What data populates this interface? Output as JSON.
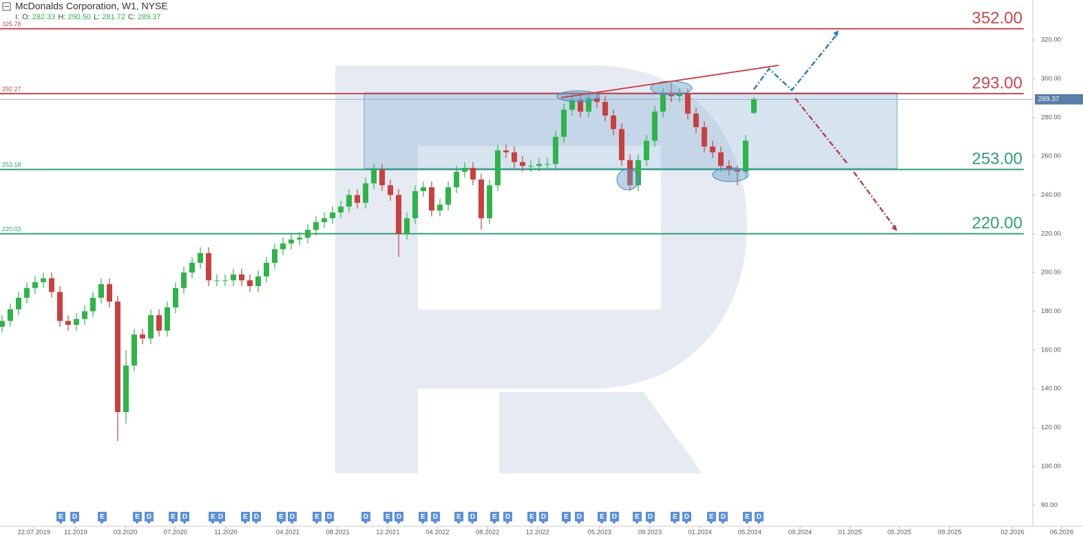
{
  "chart_data": {
    "type": "candlestick",
    "title": "McDonalds Corporation,  W1,  NYSE",
    "ohlc_prefix": "I:",
    "ohlc_names": [
      "O:",
      "H:",
      "L:",
      "C:"
    ],
    "last_labels": [
      "282.33",
      "290.50",
      "281.72",
      "289.37"
    ],
    "up_color": "#2fb34b",
    "down_color": "#c8403f",
    "open": [
      172,
      175,
      181,
      187,
      192,
      195,
      197,
      190,
      175,
      173,
      176,
      180,
      187,
      194,
      185,
      128,
      152,
      168,
      166,
      178,
      170,
      182,
      192,
      200,
      205,
      210,
      196,
      196,
      196,
      199,
      196,
      193,
      198,
      205,
      212,
      215,
      217,
      218,
      222,
      226,
      228,
      231,
      234,
      240,
      236,
      246,
      253,
      245,
      240,
      220,
      228,
      242,
      244,
      232,
      235,
      244,
      252,
      254,
      248,
      228,
      245,
      263,
      262,
      257,
      255,
      255,
      256,
      256,
      270,
      284,
      289,
      283,
      290,
      288,
      281,
      274,
      258,
      245,
      258,
      268,
      283,
      292,
      291,
      292,
      282,
      275,
      265,
      262,
      255,
      253,
      252,
      282.33
    ],
    "high": [
      178,
      184,
      190,
      195,
      198,
      200,
      200,
      193,
      178,
      179,
      183,
      190,
      197,
      197,
      188,
      160,
      171,
      171,
      181,
      181,
      185,
      195,
      203,
      208,
      213,
      213,
      199,
      199,
      202,
      202,
      199,
      201,
      208,
      215,
      218,
      220,
      221,
      225,
      229,
      231,
      234,
      237,
      243,
      243,
      249,
      256,
      256,
      248,
      243,
      231,
      245,
      247,
      247,
      238,
      247,
      255,
      257,
      257,
      251,
      248,
      266,
      266,
      265,
      260,
      258,
      259,
      259,
      273,
      287,
      292,
      292,
      293,
      293,
      291,
      284,
      277,
      261,
      261,
      271,
      286,
      295,
      298,
      295,
      295,
      285,
      278,
      268,
      265,
      258,
      255,
      271,
      290.5
    ],
    "low": [
      169,
      172,
      178,
      184,
      189,
      192,
      187,
      172,
      170,
      170,
      173,
      177,
      184,
      182,
      113,
      122,
      149,
      163,
      163,
      167,
      167,
      179,
      189,
      197,
      202,
      193,
      193,
      193,
      193,
      193,
      190,
      190,
      195,
      202,
      209,
      212,
      214,
      215,
      219,
      223,
      225,
      228,
      231,
      233,
      233,
      243,
      242,
      237,
      208,
      217,
      225,
      239,
      229,
      229,
      232,
      241,
      249,
      245,
      222,
      225,
      242,
      259,
      254,
      252,
      252,
      252,
      253,
      253,
      267,
      281,
      280,
      280,
      285,
      278,
      271,
      255,
      242,
      242,
      255,
      265,
      280,
      288,
      288,
      279,
      272,
      262,
      259,
      252,
      250,
      245,
      249,
      281.72
    ],
    "close": [
      175,
      181,
      187,
      192,
      195,
      197,
      190,
      175,
      173,
      176,
      180,
      187,
      194,
      185,
      128,
      152,
      168,
      166,
      178,
      170,
      182,
      192,
      200,
      205,
      210,
      196,
      196,
      196,
      199,
      196,
      193,
      198,
      205,
      212,
      215,
      217,
      218,
      222,
      226,
      228,
      231,
      234,
      240,
      236,
      246,
      253,
      245,
      240,
      220,
      228,
      242,
      244,
      232,
      235,
      244,
      252,
      254,
      248,
      228,
      245,
      263,
      262,
      257,
      255,
      255,
      256,
      256,
      270,
      284,
      289,
      283,
      290,
      288,
      281,
      274,
      258,
      245,
      258,
      268,
      283,
      292,
      291,
      292,
      282,
      275,
      265,
      262,
      255,
      253,
      252,
      268,
      289.37
    ],
    "ylim": [
      69.1,
      340.6
    ],
    "yticks": [
      {
        "value": 80,
        "label": "80.00"
      },
      {
        "value": 100,
        "label": "100.00"
      },
      {
        "value": 120,
        "label": "120.00"
      },
      {
        "value": 140,
        "label": "140.00"
      },
      {
        "value": 160,
        "label": "160.00"
      },
      {
        "value": 180,
        "label": "180.00"
      },
      {
        "value": 200,
        "label": "200.00"
      },
      {
        "value": 220,
        "label": "220.00"
      },
      {
        "value": 240,
        "label": "240.00"
      },
      {
        "value": 260,
        "label": "260.00"
      },
      {
        "value": 280,
        "label": "280.00"
      },
      {
        "value": 300,
        "label": "300.00"
      },
      {
        "value": 320,
        "label": "320.00"
      }
    ],
    "xticks": [
      "22.07.2019",
      "11.2019",
      "03.2020",
      "07.2020",
      "11.2020",
      "04.2021",
      "08.2021",
      "12.2021",
      "04.2022",
      "08.2022",
      "12.2022",
      "05.2023",
      "09.2023",
      "01.2024",
      "05.2024",
      "09.2024",
      "01.2025",
      "05.2025",
      "09.2025",
      "02.2026",
      "06.2026"
    ],
    "levels": [
      {
        "price": 325.78,
        "color": "#c8474a",
        "target": {
          "value": 352,
          "label": "352.00"
        }
      },
      {
        "price": 292.27,
        "color": "#c8474a",
        "target": {
          "value": 293,
          "label": "293.00"
        }
      },
      {
        "price": 253.18,
        "color": "#2e9e7c",
        "target": {
          "value": 253,
          "label": "253.00"
        }
      },
      {
        "price": 220.03,
        "color": "#2e9e7c",
        "target": {
          "value": 220,
          "label": "220.00"
        }
      }
    ],
    "events": [
      "E",
      "D",
      "E",
      "E",
      "D",
      "E",
      "D",
      "E",
      "D",
      "E",
      "D",
      "E",
      "D",
      "E",
      "D",
      "D",
      "E",
      "D",
      "E",
      "D",
      "E",
      "D",
      "E",
      "D",
      "E",
      "D",
      "E",
      "D",
      "E",
      "D",
      "E",
      "D",
      "E",
      "D",
      "E",
      "D",
      "E",
      "D"
    ]
  }
}
